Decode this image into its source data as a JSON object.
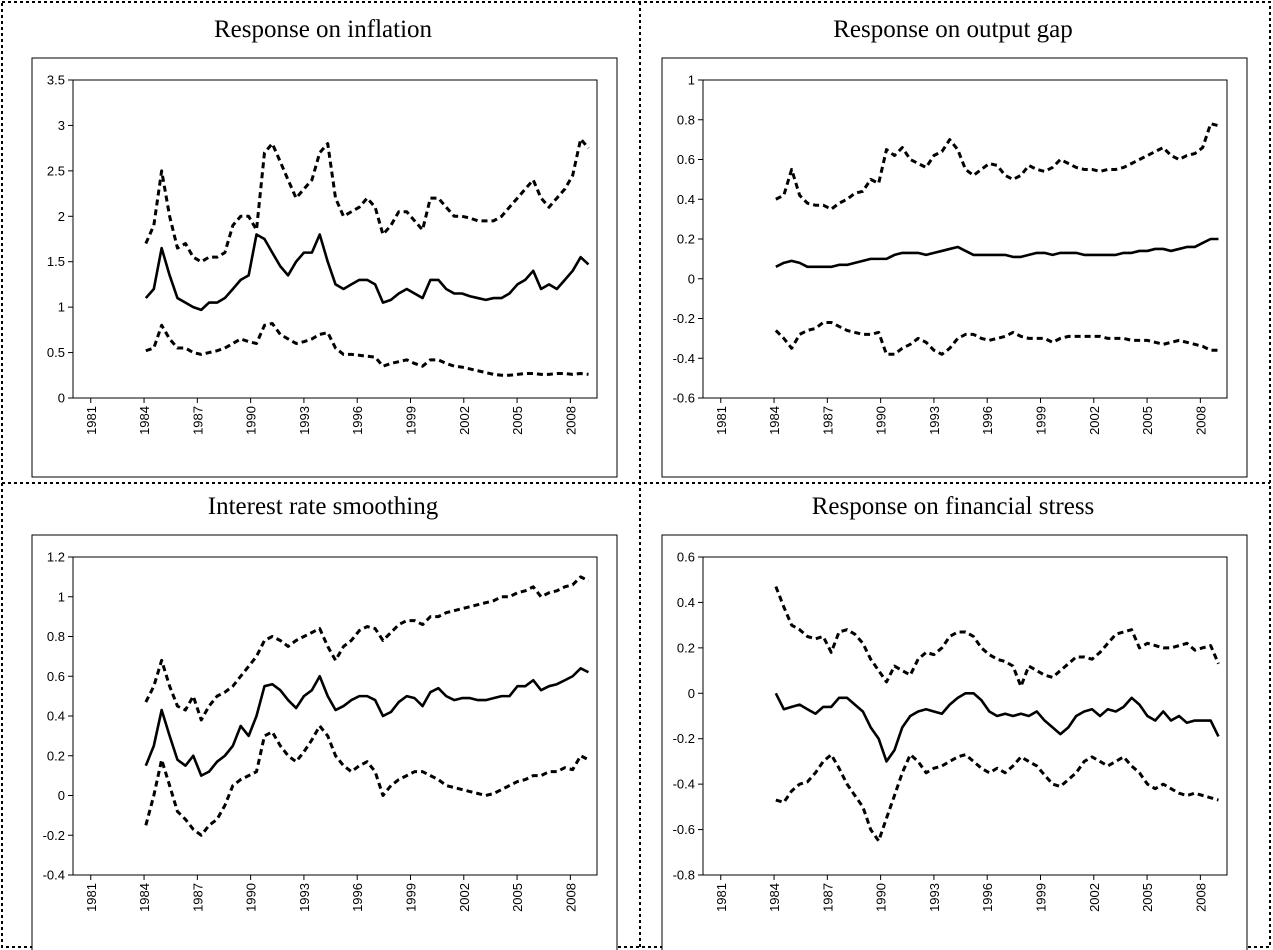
{
  "chart_data": [
    {
      "type": "line",
      "title": "Response on inflation",
      "x": [
        1984.1,
        1984.55,
        1984.99,
        1985.44,
        1985.88,
        1986.33,
        1986.77,
        1987.22,
        1987.66,
        1988.11,
        1988.55,
        1989.0,
        1989.44,
        1989.89,
        1990.33,
        1990.78,
        1991.22,
        1991.67,
        1992.11,
        1992.56,
        1993.0,
        1993.45,
        1993.89,
        1994.34,
        1994.78,
        1995.23,
        1995.67,
        1996.12,
        1996.56,
        1997.01,
        1997.45,
        1997.9,
        1998.34,
        1998.79,
        1999.23,
        1999.68,
        2000.12,
        2000.57,
        2001.01,
        2001.46,
        2001.9,
        2002.35,
        2002.79,
        2003.24,
        2003.68,
        2004.13,
        2004.57,
        2005.02,
        2005.46,
        2005.91,
        2006.35,
        2006.8,
        2007.24,
        2007.69,
        2008.13,
        2008.58,
        2009.02
      ],
      "series": [
        {
          "color": "#000000",
          "dash": false,
          "values": [
            1.1,
            1.2,
            1.65,
            1.35,
            1.1,
            1.05,
            1.0,
            0.97,
            1.05,
            1.05,
            1.1,
            1.2,
            1.3,
            1.35,
            1.8,
            1.75,
            1.6,
            1.45,
            1.35,
            1.5,
            1.6,
            1.6,
            1.8,
            1.5,
            1.25,
            1.2,
            1.25,
            1.3,
            1.3,
            1.25,
            1.05,
            1.08,
            1.15,
            1.2,
            1.15,
            1.1,
            1.3,
            1.3,
            1.2,
            1.15,
            1.15,
            1.12,
            1.1,
            1.08,
            1.1,
            1.1,
            1.15,
            1.25,
            1.3,
            1.4,
            1.2,
            1.25,
            1.2,
            1.3,
            1.4,
            1.55,
            1.47
          ]
        },
        {
          "color": "#000000",
          "dash": true,
          "values": [
            1.7,
            1.9,
            2.5,
            2.0,
            1.65,
            1.7,
            1.55,
            1.5,
            1.55,
            1.55,
            1.6,
            1.9,
            2.0,
            2.0,
            1.85,
            2.7,
            2.8,
            2.6,
            2.4,
            2.2,
            2.3,
            2.4,
            2.7,
            2.8,
            2.2,
            2.0,
            2.05,
            2.1,
            2.2,
            2.1,
            1.8,
            1.9,
            2.05,
            2.05,
            1.95,
            1.85,
            2.2,
            2.2,
            2.1,
            2.0,
            2.0,
            1.98,
            1.95,
            1.95,
            1.95,
            2.0,
            2.1,
            2.2,
            2.3,
            2.4,
            2.2,
            2.1,
            2.2,
            2.3,
            2.45,
            2.85,
            2.75
          ]
        },
        {
          "color": "#000000",
          "dash": true,
          "values": [
            0.52,
            0.55,
            0.8,
            0.65,
            0.55,
            0.55,
            0.5,
            0.48,
            0.5,
            0.52,
            0.55,
            0.6,
            0.65,
            0.62,
            0.6,
            0.8,
            0.82,
            0.7,
            0.65,
            0.6,
            0.62,
            0.65,
            0.7,
            0.72,
            0.55,
            0.48,
            0.48,
            0.47,
            0.46,
            0.45,
            0.35,
            0.38,
            0.4,
            0.42,
            0.38,
            0.35,
            0.42,
            0.42,
            0.38,
            0.35,
            0.34,
            0.32,
            0.3,
            0.28,
            0.26,
            0.25,
            0.25,
            0.26,
            0.27,
            0.27,
            0.26,
            0.26,
            0.27,
            0.27,
            0.26,
            0.27,
            0.26
          ]
        }
      ],
      "xlim": [
        1980,
        2009.5
      ],
      "xticks": [
        1981,
        1984,
        1987,
        1990,
        1993,
        1996,
        1999,
        2002,
        2005,
        2008
      ],
      "ylim": [
        0,
        3.5
      ],
      "yticks": [
        0,
        0.5,
        1,
        1.5,
        2,
        2.5,
        3,
        3.5
      ]
    },
    {
      "type": "line",
      "title": "Response on output gap",
      "x": [
        1984.1,
        1984.55,
        1984.99,
        1985.44,
        1985.88,
        1986.33,
        1986.77,
        1987.22,
        1987.66,
        1988.11,
        1988.55,
        1989.0,
        1989.44,
        1989.89,
        1990.33,
        1990.78,
        1991.22,
        1991.67,
        1992.11,
        1992.56,
        1993.0,
        1993.45,
        1993.89,
        1994.34,
        1994.78,
        1995.23,
        1995.67,
        1996.12,
        1996.56,
        1997.01,
        1997.45,
        1997.9,
        1998.34,
        1998.79,
        1999.23,
        1999.68,
        2000.12,
        2000.57,
        2001.01,
        2001.46,
        2001.9,
        2002.35,
        2002.79,
        2003.24,
        2003.68,
        2004.13,
        2004.57,
        2005.02,
        2005.46,
        2005.91,
        2006.35,
        2006.8,
        2007.24,
        2007.69,
        2008.13,
        2008.58,
        2009.02
      ],
      "series": [
        {
          "color": "#000000",
          "dash": false,
          "values": [
            0.06,
            0.08,
            0.09,
            0.08,
            0.06,
            0.06,
            0.06,
            0.06,
            0.07,
            0.07,
            0.08,
            0.09,
            0.1,
            0.1,
            0.1,
            0.12,
            0.13,
            0.13,
            0.13,
            0.12,
            0.13,
            0.14,
            0.15,
            0.16,
            0.14,
            0.12,
            0.12,
            0.12,
            0.12,
            0.12,
            0.11,
            0.11,
            0.12,
            0.13,
            0.13,
            0.12,
            0.13,
            0.13,
            0.13,
            0.12,
            0.12,
            0.12,
            0.12,
            0.12,
            0.13,
            0.13,
            0.14,
            0.14,
            0.15,
            0.15,
            0.14,
            0.15,
            0.16,
            0.16,
            0.18,
            0.2,
            0.2
          ]
        },
        {
          "color": "#000000",
          "dash": true,
          "values": [
            0.4,
            0.42,
            0.55,
            0.42,
            0.38,
            0.37,
            0.37,
            0.35,
            0.38,
            0.4,
            0.43,
            0.44,
            0.5,
            0.48,
            0.65,
            0.62,
            0.66,
            0.6,
            0.58,
            0.56,
            0.62,
            0.64,
            0.7,
            0.65,
            0.55,
            0.52,
            0.55,
            0.58,
            0.57,
            0.52,
            0.5,
            0.52,
            0.57,
            0.55,
            0.54,
            0.56,
            0.6,
            0.58,
            0.56,
            0.55,
            0.55,
            0.54,
            0.55,
            0.55,
            0.56,
            0.58,
            0.6,
            0.62,
            0.64,
            0.66,
            0.62,
            0.6,
            0.62,
            0.63,
            0.66,
            0.78,
            0.77
          ]
        },
        {
          "color": "#000000",
          "dash": true,
          "values": [
            -0.26,
            -0.3,
            -0.35,
            -0.28,
            -0.26,
            -0.25,
            -0.22,
            -0.22,
            -0.24,
            -0.26,
            -0.27,
            -0.28,
            -0.28,
            -0.27,
            -0.38,
            -0.38,
            -0.35,
            -0.33,
            -0.3,
            -0.32,
            -0.36,
            -0.38,
            -0.35,
            -0.3,
            -0.28,
            -0.28,
            -0.3,
            -0.31,
            -0.3,
            -0.29,
            -0.27,
            -0.29,
            -0.3,
            -0.3,
            -0.3,
            -0.32,
            -0.3,
            -0.29,
            -0.29,
            -0.29,
            -0.29,
            -0.29,
            -0.3,
            -0.3,
            -0.3,
            -0.31,
            -0.31,
            -0.31,
            -0.32,
            -0.33,
            -0.32,
            -0.31,
            -0.32,
            -0.33,
            -0.34,
            -0.36,
            -0.36
          ]
        }
      ],
      "xlim": [
        1980,
        2009.5
      ],
      "xticks": [
        1981,
        1984,
        1987,
        1990,
        1993,
        1996,
        1999,
        2002,
        2005,
        2008
      ],
      "ylim": [
        -0.6,
        1
      ],
      "yticks": [
        -0.6,
        -0.4,
        -0.2,
        0,
        0.2,
        0.4,
        0.6,
        0.8,
        1
      ]
    },
    {
      "type": "line",
      "title": "Interest rate smoothing",
      "x": [
        1984.1,
        1984.55,
        1984.99,
        1985.44,
        1985.88,
        1986.33,
        1986.77,
        1987.22,
        1987.66,
        1988.11,
        1988.55,
        1989.0,
        1989.44,
        1989.89,
        1990.33,
        1990.78,
        1991.22,
        1991.67,
        1992.11,
        1992.56,
        1993.0,
        1993.45,
        1993.89,
        1994.34,
        1994.78,
        1995.23,
        1995.67,
        1996.12,
        1996.56,
        1997.01,
        1997.45,
        1997.9,
        1998.34,
        1998.79,
        1999.23,
        1999.68,
        2000.12,
        2000.57,
        2001.01,
        2001.46,
        2001.9,
        2002.35,
        2002.79,
        2003.24,
        2003.68,
        2004.13,
        2004.57,
        2005.02,
        2005.46,
        2005.91,
        2006.35,
        2006.8,
        2007.24,
        2007.69,
        2008.13,
        2008.58,
        2009.02
      ],
      "series": [
        {
          "color": "#000000",
          "dash": false,
          "values": [
            0.15,
            0.25,
            0.43,
            0.3,
            0.18,
            0.15,
            0.2,
            0.1,
            0.12,
            0.17,
            0.2,
            0.25,
            0.35,
            0.3,
            0.4,
            0.55,
            0.56,
            0.53,
            0.48,
            0.44,
            0.5,
            0.53,
            0.6,
            0.5,
            0.43,
            0.45,
            0.48,
            0.5,
            0.5,
            0.48,
            0.4,
            0.42,
            0.47,
            0.5,
            0.49,
            0.45,
            0.52,
            0.54,
            0.5,
            0.48,
            0.49,
            0.49,
            0.48,
            0.48,
            0.49,
            0.5,
            0.5,
            0.55,
            0.55,
            0.58,
            0.53,
            0.55,
            0.56,
            0.58,
            0.6,
            0.64,
            0.62
          ]
        },
        {
          "color": "#000000",
          "dash": true,
          "values": [
            0.47,
            0.55,
            0.68,
            0.55,
            0.45,
            0.43,
            0.5,
            0.38,
            0.45,
            0.5,
            0.52,
            0.55,
            0.6,
            0.65,
            0.7,
            0.78,
            0.8,
            0.78,
            0.75,
            0.78,
            0.8,
            0.82,
            0.84,
            0.75,
            0.68,
            0.75,
            0.78,
            0.83,
            0.85,
            0.84,
            0.78,
            0.82,
            0.86,
            0.88,
            0.88,
            0.86,
            0.9,
            0.9,
            0.92,
            0.93,
            0.94,
            0.95,
            0.96,
            0.97,
            0.98,
            1.0,
            1.0,
            1.02,
            1.03,
            1.05,
            1.0,
            1.02,
            1.03,
            1.05,
            1.06,
            1.1,
            1.08
          ]
        },
        {
          "color": "#000000",
          "dash": true,
          "values": [
            -0.15,
            0.0,
            0.18,
            0.05,
            -0.08,
            -0.12,
            -0.17,
            -0.2,
            -0.15,
            -0.12,
            -0.05,
            0.05,
            0.08,
            0.1,
            0.12,
            0.3,
            0.32,
            0.25,
            0.2,
            0.17,
            0.22,
            0.28,
            0.35,
            0.3,
            0.2,
            0.15,
            0.12,
            0.15,
            0.17,
            0.12,
            0.0,
            0.05,
            0.08,
            0.1,
            0.12,
            0.12,
            0.1,
            0.08,
            0.05,
            0.04,
            0.03,
            0.02,
            0.01,
            0.0,
            0.01,
            0.03,
            0.05,
            0.07,
            0.08,
            0.1,
            0.1,
            0.12,
            0.12,
            0.14,
            0.13,
            0.2,
            0.18
          ]
        }
      ],
      "xlim": [
        1980,
        2009.5
      ],
      "xticks": [
        1981,
        1984,
        1987,
        1990,
        1993,
        1996,
        1999,
        2002,
        2005,
        2008
      ],
      "ylim": [
        -0.4,
        1.2
      ],
      "yticks": [
        -0.4,
        -0.2,
        0,
        0.2,
        0.4,
        0.6,
        0.8,
        1,
        1.2
      ]
    },
    {
      "type": "line",
      "title": "Response on financial stress",
      "x": [
        1984.1,
        1984.55,
        1984.99,
        1985.44,
        1985.88,
        1986.33,
        1986.77,
        1987.22,
        1987.66,
        1988.11,
        1988.55,
        1989.0,
        1989.44,
        1989.89,
        1990.33,
        1990.78,
        1991.22,
        1991.67,
        1992.11,
        1992.56,
        1993.0,
        1993.45,
        1993.89,
        1994.34,
        1994.78,
        1995.23,
        1995.67,
        1996.12,
        1996.56,
        1997.01,
        1997.45,
        1997.9,
        1998.34,
        1998.79,
        1999.23,
        1999.68,
        2000.12,
        2000.57,
        2001.01,
        2001.46,
        2001.9,
        2002.35,
        2002.79,
        2003.24,
        2003.68,
        2004.13,
        2004.57,
        2005.02,
        2005.46,
        2005.91,
        2006.35,
        2006.8,
        2007.24,
        2007.69,
        2008.13,
        2008.58,
        2009.02
      ],
      "series": [
        {
          "color": "#000000",
          "dash": false,
          "values": [
            0.0,
            -0.07,
            -0.06,
            -0.05,
            -0.07,
            -0.09,
            -0.06,
            -0.06,
            -0.02,
            -0.02,
            -0.05,
            -0.08,
            -0.15,
            -0.2,
            -0.3,
            -0.25,
            -0.15,
            -0.1,
            -0.08,
            -0.07,
            -0.08,
            -0.09,
            -0.05,
            -0.02,
            0.0,
            0.0,
            -0.03,
            -0.08,
            -0.1,
            -0.09,
            -0.1,
            -0.09,
            -0.1,
            -0.08,
            -0.12,
            -0.15,
            -0.18,
            -0.15,
            -0.1,
            -0.08,
            -0.07,
            -0.1,
            -0.07,
            -0.08,
            -0.06,
            -0.02,
            -0.05,
            -0.1,
            -0.12,
            -0.08,
            -0.12,
            -0.1,
            -0.13,
            -0.12,
            -0.12,
            -0.12,
            -0.19
          ]
        },
        {
          "color": "#000000",
          "dash": true,
          "values": [
            0.47,
            0.38,
            0.3,
            0.28,
            0.25,
            0.24,
            0.25,
            0.18,
            0.27,
            0.28,
            0.26,
            0.22,
            0.15,
            0.1,
            0.05,
            0.12,
            0.1,
            0.08,
            0.15,
            0.18,
            0.17,
            0.2,
            0.25,
            0.27,
            0.27,
            0.25,
            0.2,
            0.17,
            0.15,
            0.14,
            0.12,
            0.03,
            0.12,
            0.1,
            0.08,
            0.07,
            0.1,
            0.13,
            0.16,
            0.16,
            0.15,
            0.18,
            0.22,
            0.26,
            0.27,
            0.28,
            0.2,
            0.22,
            0.21,
            0.2,
            0.2,
            0.21,
            0.22,
            0.19,
            0.2,
            0.21,
            0.13
          ]
        },
        {
          "color": "#000000",
          "dash": true,
          "values": [
            -0.47,
            -0.48,
            -0.43,
            -0.4,
            -0.39,
            -0.35,
            -0.3,
            -0.27,
            -0.33,
            -0.4,
            -0.45,
            -0.5,
            -0.6,
            -0.65,
            -0.55,
            -0.45,
            -0.35,
            -0.27,
            -0.3,
            -0.35,
            -0.33,
            -0.32,
            -0.3,
            -0.28,
            -0.27,
            -0.3,
            -0.33,
            -0.35,
            -0.33,
            -0.35,
            -0.32,
            -0.28,
            -0.3,
            -0.32,
            -0.36,
            -0.4,
            -0.41,
            -0.38,
            -0.35,
            -0.3,
            -0.28,
            -0.3,
            -0.32,
            -0.3,
            -0.28,
            -0.32,
            -0.35,
            -0.4,
            -0.42,
            -0.4,
            -0.42,
            -0.44,
            -0.45,
            -0.44,
            -0.45,
            -0.46,
            -0.47
          ]
        }
      ],
      "xlim": [
        1980,
        2009.5
      ],
      "xticks": [
        1981,
        1984,
        1987,
        1990,
        1993,
        1996,
        1999,
        2002,
        2005,
        2008
      ],
      "ylim": [
        -0.8,
        0.6
      ],
      "yticks": [
        -0.8,
        -0.6,
        -0.4,
        -0.2,
        0,
        0.2,
        0.4,
        0.6
      ]
    }
  ]
}
